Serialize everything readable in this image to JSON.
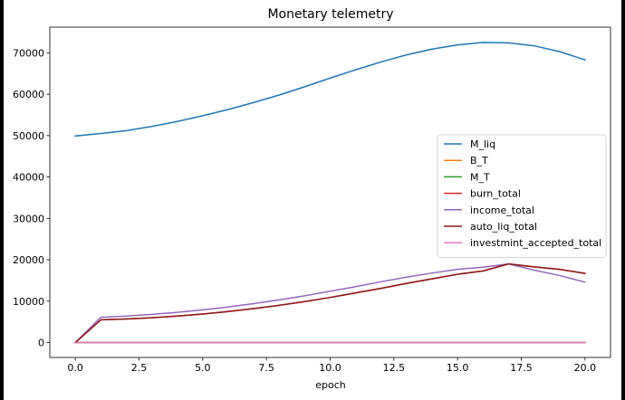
{
  "chart_data": {
    "type": "line",
    "title": "Monetary telemetry",
    "xlabel": "epoch",
    "ylabel": "",
    "xlim": [
      -1.0,
      21.0
    ],
    "ylim": [
      -3600,
      76200
    ],
    "xticks": [
      0.0,
      2.5,
      5.0,
      7.5,
      10.0,
      12.5,
      15.0,
      17.5,
      20.0
    ],
    "xtick_labels": [
      "0.0",
      "2.5",
      "5.0",
      "7.5",
      "10.0",
      "12.5",
      "15.0",
      "17.5",
      "20.0"
    ],
    "yticks": [
      0,
      10000,
      20000,
      30000,
      40000,
      50000,
      60000,
      70000
    ],
    "ytick_labels": [
      "0",
      "10000",
      "20000",
      "30000",
      "40000",
      "50000",
      "60000",
      "70000"
    ],
    "grid": false,
    "legend_position": "center-right",
    "x": [
      0,
      1,
      2,
      3,
      4,
      5,
      6,
      7,
      8,
      9,
      10,
      11,
      12,
      13,
      14,
      15,
      16,
      17,
      18,
      19,
      20
    ],
    "series": [
      {
        "name": "M_liq",
        "color": "#1f77b4",
        "values": [
          49900,
          50500,
          51200,
          52200,
          53400,
          54800,
          56300,
          58000,
          59800,
          61800,
          63900,
          65900,
          67800,
          69500,
          70900,
          71900,
          72500,
          72400,
          71700,
          70300,
          68300
        ]
      },
      {
        "name": "B_T",
        "color": "#ff7f0e",
        "values": [
          0,
          0,
          0,
          0,
          0,
          0,
          0,
          0,
          0,
          0,
          0,
          0,
          0,
          0,
          0,
          0,
          0,
          0,
          0,
          0,
          0
        ]
      },
      {
        "name": "M_T",
        "color": "#2ca02c",
        "values": [
          0,
          0,
          0,
          0,
          0,
          0,
          0,
          0,
          0,
          0,
          0,
          0,
          0,
          0,
          0,
          0,
          0,
          0,
          0,
          0,
          0
        ]
      },
      {
        "name": "burn_total",
        "color": "#d62728",
        "values": [
          0,
          5500,
          5700,
          6000,
          6400,
          6900,
          7500,
          8200,
          9000,
          9900,
          10900,
          12000,
          13100,
          14300,
          15400,
          16500,
          17300,
          19000,
          18300,
          17700,
          16700
        ]
      },
      {
        "name": "income_total",
        "color": "#9467bd",
        "values": [
          0,
          6100,
          6400,
          6800,
          7300,
          7900,
          8600,
          9400,
          10300,
          11300,
          12400,
          13500,
          14700,
          15800,
          16800,
          17700,
          18200,
          19000,
          17500,
          16200,
          14600
        ]
      },
      {
        "name": "auto_liq_total",
        "color": "#8c1a1a",
        "values": [
          0,
          5500,
          5700,
          6000,
          6400,
          6900,
          7500,
          8200,
          9000,
          9900,
          10900,
          12000,
          13100,
          14300,
          15400,
          16500,
          17300,
          19000,
          18300,
          17700,
          16700
        ]
      },
      {
        "name": "investmint_accepted_total",
        "color": "#e377c2",
        "values": [
          0,
          0,
          0,
          0,
          0,
          0,
          0,
          0,
          0,
          0,
          0,
          0,
          0,
          0,
          0,
          0,
          0,
          0,
          0,
          0,
          0
        ]
      }
    ]
  }
}
